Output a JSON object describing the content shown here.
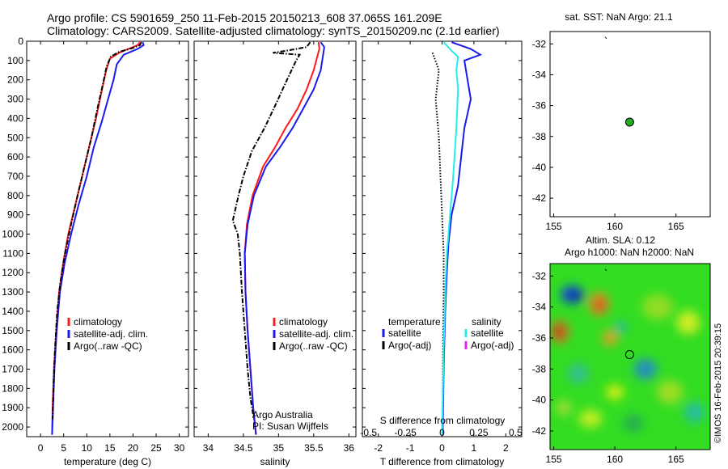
{
  "title": {
    "line1": "Argo profile: CS 5901659_250 11-Feb-2015 20150213_608 37.065S 161.209E",
    "line2": "Climatology: CARS2009. Satellite-adjusted climatology: synTS_20150209.nc (2.1d earlier)"
  },
  "colors": {
    "climatology": "#ff1a1a",
    "satellite": "#1a1aee",
    "argo": "#000000",
    "sat_salinity": "#22eeee",
    "argo_salinity_adj": "#ee22ee",
    "marker": "#22aa22"
  },
  "chart_data": [
    {
      "type": "line",
      "name": "temperature-profile",
      "xlabel": "temperature (deg C)",
      "ylabel": "",
      "xlim": [
        -3,
        32
      ],
      "ylim": [
        2050,
        0
      ],
      "xticks": [
        0,
        5,
        10,
        15,
        20,
        25,
        30
      ],
      "yticks": [
        0,
        100,
        200,
        300,
        400,
        500,
        600,
        700,
        800,
        900,
        1000,
        1100,
        1200,
        1300,
        1400,
        1500,
        1600,
        1700,
        1800,
        1900,
        2000
      ],
      "legend": [
        "climatology",
        "satellite-adj. clim.",
        "Argo(..raw -QC)"
      ],
      "series": [
        {
          "name": "climatology",
          "style": "solid",
          "color": "#ff1a1a",
          "points": [
            [
              21.5,
              5
            ],
            [
              21,
              20
            ],
            [
              19,
              40
            ],
            [
              17,
              60
            ],
            [
              15,
              90
            ],
            [
              14.2,
              150
            ],
            [
              13.3,
              250
            ],
            [
              12,
              400
            ],
            [
              10.5,
              550
            ],
            [
              9,
              700
            ],
            [
              7.5,
              850
            ],
            [
              6,
              1000
            ],
            [
              4.9,
              1150
            ],
            [
              4,
              1300
            ],
            [
              3.4,
              1500
            ],
            [
              2.9,
              1700
            ],
            [
              2.6,
              1900
            ],
            [
              2.5,
              2040
            ]
          ]
        },
        {
          "name": "satellite-adj. clim.",
          "style": "solid",
          "color": "#1a1aee",
          "points": [
            [
              22.1,
              5
            ],
            [
              22.3,
              20
            ],
            [
              21,
              40
            ],
            [
              18,
              70
            ],
            [
              16.5,
              120
            ],
            [
              15.8,
              200
            ],
            [
              14.6,
              300
            ],
            [
              13.2,
              420
            ],
            [
              11.5,
              550
            ],
            [
              10,
              700
            ],
            [
              8.2,
              850
            ],
            [
              6.6,
              1000
            ],
            [
              5.2,
              1150
            ],
            [
              4.2,
              1300
            ],
            [
              3.5,
              1500
            ],
            [
              3,
              1700
            ],
            [
              2.7,
              1900
            ],
            [
              2.5,
              2040
            ]
          ]
        },
        {
          "name": "Argo(..raw -QC)",
          "style": "dash-dot",
          "color": "#000000",
          "points": [
            [
              21.8,
              5
            ],
            [
              21.5,
              20
            ],
            [
              20,
              35
            ],
            [
              17,
              55
            ],
            [
              15.2,
              80
            ],
            [
              14.3,
              130
            ],
            [
              13.5,
              220
            ],
            [
              12.3,
              350
            ],
            [
              11,
              500
            ],
            [
              9.5,
              650
            ],
            [
              8,
              800
            ],
            [
              6.6,
              950
            ],
            [
              5.3,
              1100
            ],
            [
              4.3,
              1250
            ],
            [
              3.6,
              1400
            ],
            [
              3.1,
              1600
            ],
            [
              2.8,
              1800
            ],
            [
              2.6,
              1960
            ]
          ]
        }
      ]
    },
    {
      "type": "line",
      "name": "salinity-profile",
      "xlabel": "salinity",
      "xlim": [
        33.8,
        36.1
      ],
      "ylim": [
        2050,
        0
      ],
      "xticks": [
        34,
        34.5,
        35,
        35.5,
        36
      ],
      "legend": [
        "climatology",
        "satellite-adj. clim.",
        "Argo(..raw -QC)"
      ],
      "annotation": [
        "Argo Australia",
        "PI: Susan Wijffels"
      ],
      "series": [
        {
          "name": "climatology",
          "style": "solid",
          "color": "#ff1a1a",
          "points": [
            [
              35.57,
              5
            ],
            [
              35.58,
              40
            ],
            [
              35.55,
              80
            ],
            [
              35.5,
              150
            ],
            [
              35.4,
              250
            ],
            [
              35.27,
              350
            ],
            [
              35.1,
              450
            ],
            [
              34.95,
              550
            ],
            [
              34.78,
              650
            ],
            [
              34.63,
              800
            ],
            [
              34.55,
              950
            ],
            [
              34.52,
              1100
            ],
            [
              34.53,
              1300
            ],
            [
              34.56,
              1500
            ],
            [
              34.6,
              1700
            ],
            [
              34.64,
              1900
            ],
            [
              34.68,
              2040
            ]
          ]
        },
        {
          "name": "satellite-adj. clim.",
          "style": "solid",
          "color": "#1a1aee",
          "points": [
            [
              35.6,
              5
            ],
            [
              35.65,
              30
            ],
            [
              35.63,
              80
            ],
            [
              35.6,
              150
            ],
            [
              35.5,
              250
            ],
            [
              35.35,
              350
            ],
            [
              35.2,
              450
            ],
            [
              35.02,
              550
            ],
            [
              34.82,
              650
            ],
            [
              34.65,
              800
            ],
            [
              34.56,
              950
            ],
            [
              34.52,
              1100
            ],
            [
              34.53,
              1300
            ],
            [
              34.56,
              1500
            ],
            [
              34.6,
              1700
            ],
            [
              34.64,
              1900
            ],
            [
              34.68,
              2040
            ]
          ]
        },
        {
          "name": "Argo(..raw -QC)",
          "style": "dash-dot",
          "color": "#000000",
          "points": [
            [
              35.45,
              5
            ],
            [
              35.4,
              30
            ],
            [
              35.1,
              50
            ],
            [
              34.92,
              60
            ],
            [
              35.3,
              70
            ],
            [
              35.25,
              100
            ],
            [
              35.12,
              200
            ],
            [
              34.97,
              320
            ],
            [
              34.8,
              450
            ],
            [
              34.62,
              570
            ],
            [
              34.5,
              700
            ],
            [
              34.43,
              800
            ],
            [
              34.35,
              930
            ],
            [
              34.42,
              1000
            ],
            [
              34.45,
              1100
            ],
            [
              34.48,
              1300
            ],
            [
              34.52,
              1500
            ],
            [
              34.56,
              1700
            ],
            [
              34.6,
              1850
            ],
            [
              34.65,
              1960
            ]
          ]
        }
      ]
    },
    {
      "type": "line",
      "name": "difference-profile",
      "xlabel": "T difference from climatology",
      "xlabel_top": "S difference from climatology",
      "xlim": [
        -2.5,
        2.5
      ],
      "ylim": [
        2050,
        0
      ],
      "xticks": [
        -2,
        -1,
        0,
        1,
        2
      ],
      "xtick_labels_s": [
        "-0.5",
        "-0.25",
        "0",
        "0.25",
        "0.5"
      ],
      "legend_temperature": [
        "temperature",
        "satellite",
        "Argo(-adj)"
      ],
      "legend_salinity": [
        "salinity",
        "satellite",
        "Argo(-adj)"
      ],
      "series": [
        {
          "name": "temperature satellite",
          "style": "solid",
          "color": "#1a1aee",
          "points": [
            [
              0.3,
              5
            ],
            [
              0.9,
              40
            ],
            [
              1.2,
              70
            ],
            [
              0.7,
              100
            ],
            [
              0.8,
              200
            ],
            [
              0.9,
              300
            ],
            [
              0.7,
              450
            ],
            [
              0.6,
              600
            ],
            [
              0.5,
              750
            ],
            [
              0.3,
              900
            ],
            [
              0.2,
              1050
            ],
            [
              0.15,
              1200
            ],
            [
              0.1,
              1400
            ],
            [
              0.05,
              1700
            ],
            [
              0.02,
              2040
            ]
          ]
        },
        {
          "name": "temperature Argo(-adj)",
          "style": "dotted",
          "color": "#000000",
          "points": [
            [
              -0.3,
              60
            ],
            [
              -0.1,
              150
            ],
            [
              -0.2,
              300
            ],
            [
              -0.1,
              500
            ],
            [
              -0.05,
              700
            ],
            [
              0,
              900
            ],
            [
              0.05,
              1100
            ],
            [
              0.05,
              1300
            ],
            [
              0.03,
              1600
            ],
            [
              0.02,
              1900
            ],
            [
              0,
              2000
            ]
          ]
        },
        {
          "name": "salinity satellite",
          "style": "solid",
          "color": "#22eeee",
          "points": [
            [
              0.05,
              5
            ],
            [
              0.3,
              50
            ],
            [
              0.5,
              80
            ],
            [
              0.45,
              150
            ],
            [
              0.5,
              250
            ],
            [
              0.45,
              450
            ],
            [
              0.35,
              700
            ],
            [
              0.25,
              900
            ],
            [
              0.15,
              1100
            ],
            [
              0.1,
              1300
            ],
            [
              0.05,
              1600
            ],
            [
              0,
              2040
            ]
          ]
        }
      ]
    },
    {
      "type": "scatter",
      "name": "sst-map",
      "title": "sat. SST: NaN Argo: 21.1",
      "xlim": [
        154.7,
        167.8
      ],
      "ylim": [
        -43.2,
        -31.2
      ],
      "xticks": [
        155,
        160,
        165
      ],
      "yticks": [
        -32,
        -34,
        -36,
        -38,
        -40,
        -42
      ],
      "points": [
        {
          "lon": 161.21,
          "lat": -37.07
        }
      ]
    },
    {
      "type": "heatmap",
      "name": "sla-map",
      "title_line1": "Altim. SLA: 0.12",
      "title_line2": "Argo h1000: NaN h2000: NaN",
      "xlim": [
        154.7,
        167.8
      ],
      "ylim": [
        -43.2,
        -31.2
      ],
      "xticks": [
        155,
        160,
        165
      ],
      "yticks": [
        -32,
        -34,
        -36,
        -38,
        -40,
        -42
      ],
      "points": [
        {
          "lon": 161.21,
          "lat": -37.07
        }
      ]
    }
  ],
  "footer": "©IMOS 16-Feb-2015 20:39:15"
}
